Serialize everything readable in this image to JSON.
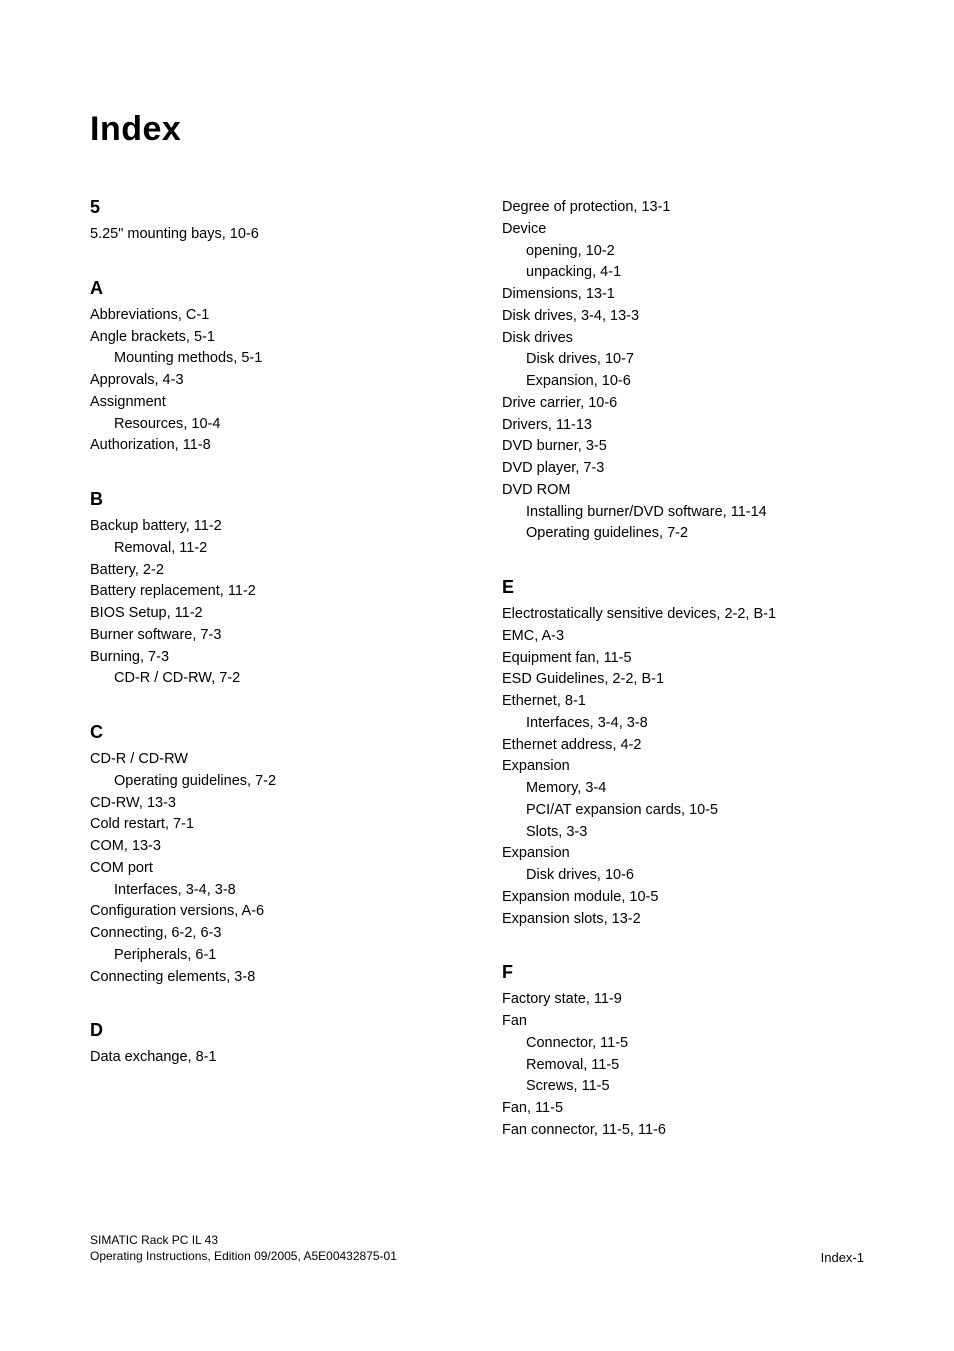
{
  "title": "Index",
  "left_sections": [
    {
      "heading": "5",
      "items": [
        {
          "label": "5.25\" mounting bays",
          "refs": [
            "10-6"
          ]
        }
      ]
    },
    {
      "heading": "A",
      "items": [
        {
          "label": "Abbreviations",
          "refs": [
            "C-1"
          ]
        },
        {
          "label": "Angle brackets",
          "refs": [
            "5-1"
          ]
        },
        {
          "label": "Mounting methods",
          "refs": [
            "5-1"
          ],
          "sub": true
        },
        {
          "label": "Approvals",
          "refs": [
            "4-3"
          ]
        },
        {
          "label": "Assignment",
          "refs": []
        },
        {
          "label": "Resources",
          "refs": [
            "10-4"
          ],
          "sub": true
        },
        {
          "label": "Authorization",
          "refs": [
            "11-8"
          ]
        }
      ]
    },
    {
      "heading": "B",
      "items": [
        {
          "label": "Backup battery",
          "refs": [
            "11-2"
          ]
        },
        {
          "label": "Removal",
          "refs": [
            "11-2"
          ],
          "sub": true
        },
        {
          "label": "Battery",
          "refs": [
            "2-2"
          ]
        },
        {
          "label": "Battery replacement",
          "refs": [
            "11-2"
          ]
        },
        {
          "label": "BIOS Setup",
          "refs": [
            "11-2"
          ]
        },
        {
          "label": "Burner software",
          "refs": [
            "7-3"
          ]
        },
        {
          "label": "Burning",
          "refs": [
            "7-3"
          ]
        },
        {
          "label": "CD-R / CD-RW",
          "refs": [
            "7-2"
          ],
          "sub": true
        }
      ]
    },
    {
      "heading": "C",
      "items": [
        {
          "label": "CD-R / CD-RW",
          "refs": []
        },
        {
          "label": "Operating guidelines",
          "refs": [
            "7-2"
          ],
          "sub": true
        },
        {
          "label": "CD-RW",
          "refs": [
            "13-3"
          ]
        },
        {
          "label": "Cold restart",
          "refs": [
            "7-1"
          ]
        },
        {
          "label": "COM",
          "refs": [
            "13-3"
          ]
        },
        {
          "label": "COM port",
          "refs": []
        },
        {
          "label": "Interfaces",
          "refs": [
            "3-4",
            "3-8"
          ],
          "sub": true
        },
        {
          "label": "Configuration versions",
          "refs": [
            "A-6"
          ]
        },
        {
          "label": "Connecting",
          "refs": [
            "6-2",
            "6-3"
          ]
        },
        {
          "label": "Peripherals",
          "refs": [
            "6-1"
          ],
          "sub": true
        },
        {
          "label": "Connecting elements",
          "refs": [
            "3-8"
          ]
        }
      ]
    },
    {
      "heading": "D",
      "items": [
        {
          "label": "Data exchange",
          "refs": [
            "8-1"
          ]
        }
      ]
    }
  ],
  "right_sections": [
    {
      "heading": "",
      "items": [
        {
          "label": "Degree of protection",
          "refs": [
            "13-1"
          ]
        },
        {
          "label": "Device",
          "refs": []
        },
        {
          "label": "opening",
          "refs": [
            "10-2"
          ],
          "sub": true
        },
        {
          "label": "unpacking",
          "refs": [
            "4-1"
          ],
          "sub": true
        },
        {
          "label": "Dimensions",
          "refs": [
            "13-1"
          ]
        },
        {
          "label": "Disk drives",
          "refs": [
            "3-4",
            "13-3"
          ]
        },
        {
          "label": "Disk drives",
          "refs": []
        },
        {
          "label": "Disk drives",
          "refs": [
            "10-7"
          ],
          "sub": true
        },
        {
          "label": "Expansion",
          "refs": [
            "10-6"
          ],
          "sub": true
        },
        {
          "label": "Drive carrier",
          "refs": [
            "10-6"
          ]
        },
        {
          "label": "Drivers",
          "refs": [
            "11-13"
          ]
        },
        {
          "label": "DVD burner",
          "refs": [
            "3-5"
          ]
        },
        {
          "label": "DVD player",
          "refs": [
            "7-3"
          ]
        },
        {
          "label": "DVD ROM",
          "refs": []
        },
        {
          "label": "Installing burner/DVD software",
          "refs": [
            "11-14"
          ],
          "sub": true
        },
        {
          "label": "Operating guidelines",
          "refs": [
            "7-2"
          ],
          "sub": true
        }
      ]
    },
    {
      "heading": "E",
      "items": [
        {
          "label": "Electrostatically sensitive devices",
          "refs": [
            "2-2",
            "B-1"
          ]
        },
        {
          "label": "EMC",
          "refs": [
            "A-3"
          ]
        },
        {
          "label": "Equipment fan",
          "refs": [
            "11-5"
          ]
        },
        {
          "label": "ESD Guidelines",
          "refs": [
            "2-2",
            "B-1"
          ]
        },
        {
          "label": "Ethernet",
          "refs": [
            "8-1"
          ]
        },
        {
          "label": "Interfaces",
          "refs": [
            "3-4",
            "3-8"
          ],
          "sub": true
        },
        {
          "label": "Ethernet address",
          "refs": [
            "4-2"
          ]
        },
        {
          "label": "Expansion",
          "refs": []
        },
        {
          "label": "Memory",
          "refs": [
            "3-4"
          ],
          "sub": true
        },
        {
          "label": "PCI/AT expansion cards",
          "refs": [
            "10-5"
          ],
          "sub": true
        },
        {
          "label": "Slots",
          "refs": [
            "3-3"
          ],
          "sub": true
        },
        {
          "label": "Expansion",
          "refs": []
        },
        {
          "label": "Disk drives",
          "refs": [
            "10-6"
          ],
          "sub": true
        },
        {
          "label": "Expansion module",
          "refs": [
            "10-5"
          ]
        },
        {
          "label": "Expansion slots",
          "refs": [
            "13-2"
          ]
        }
      ]
    },
    {
      "heading": "F",
      "items": [
        {
          "label": "Factory state",
          "refs": [
            "11-9"
          ]
        },
        {
          "label": "Fan",
          "refs": []
        },
        {
          "label": "Connector",
          "refs": [
            "11-5"
          ],
          "sub": true
        },
        {
          "label": "Removal",
          "refs": [
            "11-5"
          ],
          "sub": true
        },
        {
          "label": "Screws",
          "refs": [
            "11-5"
          ],
          "sub": true
        },
        {
          "label": "Fan",
          "refs": [
            "11-5"
          ]
        },
        {
          "label": "Fan connector",
          "refs": [
            "11-5",
            "11-6"
          ]
        }
      ]
    }
  ],
  "footer": {
    "line1": "SIMATIC Rack PC IL 43",
    "line2": "Operating Instructions, Edition 09/2005, A5E00432875-01",
    "page": "Index-1"
  }
}
